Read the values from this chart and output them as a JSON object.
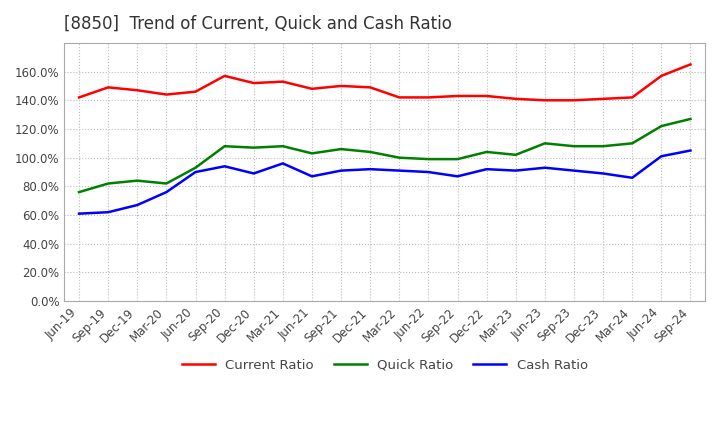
{
  "title": "[8850]  Trend of Current, Quick and Cash Ratio",
  "x_labels": [
    "Jun-19",
    "Sep-19",
    "Dec-19",
    "Mar-20",
    "Jun-20",
    "Sep-20",
    "Dec-20",
    "Mar-21",
    "Jun-21",
    "Sep-21",
    "Dec-21",
    "Mar-22",
    "Jun-22",
    "Sep-22",
    "Dec-22",
    "Mar-23",
    "Jun-23",
    "Sep-23",
    "Dec-23",
    "Mar-24",
    "Jun-24",
    "Sep-24"
  ],
  "current_ratio": [
    1.42,
    1.49,
    1.47,
    1.44,
    1.46,
    1.57,
    1.52,
    1.53,
    1.48,
    1.5,
    1.49,
    1.42,
    1.42,
    1.43,
    1.43,
    1.41,
    1.4,
    1.4,
    1.41,
    1.42,
    1.57,
    1.65
  ],
  "quick_ratio": [
    0.76,
    0.82,
    0.84,
    0.82,
    0.93,
    1.08,
    1.07,
    1.08,
    1.03,
    1.06,
    1.04,
    1.0,
    0.99,
    0.99,
    1.04,
    1.02,
    1.1,
    1.08,
    1.08,
    1.1,
    1.22,
    1.27
  ],
  "cash_ratio": [
    0.61,
    0.62,
    0.67,
    0.76,
    0.9,
    0.94,
    0.89,
    0.96,
    0.87,
    0.91,
    0.92,
    0.91,
    0.9,
    0.87,
    0.92,
    0.91,
    0.93,
    0.91,
    0.89,
    0.86,
    1.01,
    1.05
  ],
  "current_color": "#ff0000",
  "quick_color": "#008000",
  "cash_color": "#0000ff",
  "background_color": "#ffffff",
  "grid_color": "#bbbbbb",
  "ylim": [
    0.0,
    1.8
  ],
  "yticks": [
    0.0,
    0.2,
    0.4,
    0.6,
    0.8,
    1.0,
    1.2,
    1.4,
    1.6
  ],
  "legend_labels": [
    "Current Ratio",
    "Quick Ratio",
    "Cash Ratio"
  ],
  "title_fontsize": 12,
  "tick_fontsize": 8.5,
  "legend_fontsize": 9.5
}
